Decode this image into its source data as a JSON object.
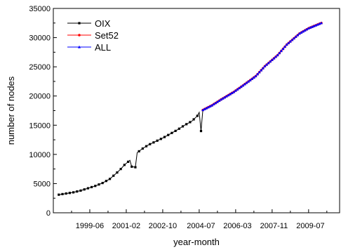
{
  "chart_data": {
    "type": "line",
    "xlabel": "year-month",
    "ylabel": "number of nodes",
    "ylim": [
      0,
      35000
    ],
    "y_ticks": [
      0,
      5000,
      10000,
      15000,
      20000,
      25000,
      30000,
      35000
    ],
    "x_ticks": [
      "1999-06",
      "2001-02",
      "2002-10",
      "2004-07",
      "2006-03",
      "2007-11",
      "2009-07"
    ],
    "xlim": [
      "1997-10",
      "2010-11"
    ],
    "grid": false,
    "legend_position": "top-left",
    "series": [
      {
        "name": "OIX",
        "color": "#000000",
        "marker": "square",
        "points": [
          [
            "1998-01",
            3100
          ],
          [
            "1998-05",
            3300
          ],
          [
            "1998-09",
            3500
          ],
          [
            "1999-01",
            3800
          ],
          [
            "1999-05",
            4200
          ],
          [
            "1999-09",
            4600
          ],
          [
            "2000-01",
            5100
          ],
          [
            "2000-05",
            5800
          ],
          [
            "2000-09",
            6900
          ],
          [
            "2000-11",
            7500
          ],
          [
            "2001-01",
            8200
          ],
          [
            "2001-04",
            9000
          ],
          [
            "2001-05",
            7900
          ],
          [
            "2001-07",
            7800
          ],
          [
            "2001-08",
            10300
          ],
          [
            "2001-11",
            11000
          ],
          [
            "2002-02",
            11600
          ],
          [
            "2002-06",
            12200
          ],
          [
            "2002-10",
            12800
          ],
          [
            "2003-02",
            13500
          ],
          [
            "2003-06",
            14200
          ],
          [
            "2003-10",
            15000
          ],
          [
            "2004-02",
            15700
          ],
          [
            "2004-05",
            16600
          ],
          [
            "2004-06",
            17200
          ],
          [
            "2004-07",
            14000
          ],
          [
            "2004-08",
            17600
          ]
        ]
      },
      {
        "name": "Set52",
        "color": "#ff0000",
        "marker": "circle",
        "points": [
          [
            "2004-08",
            17600
          ],
          [
            "2005-01",
            18400
          ],
          [
            "2005-06",
            19400
          ],
          [
            "2006-01",
            20700
          ],
          [
            "2006-06",
            21800
          ],
          [
            "2007-01",
            23400
          ],
          [
            "2007-06",
            25100
          ],
          [
            "2008-01",
            27000
          ],
          [
            "2008-06",
            28800
          ],
          [
            "2009-01",
            30700
          ],
          [
            "2009-06",
            31600
          ],
          [
            "2010-01",
            32500
          ]
        ]
      },
      {
        "name": "ALL",
        "color": "#0000ff",
        "marker": "triangle",
        "points": [
          [
            "2004-08",
            17600
          ],
          [
            "2005-01",
            18400
          ],
          [
            "2005-06",
            19400
          ],
          [
            "2006-01",
            20700
          ],
          [
            "2006-06",
            21800
          ],
          [
            "2007-01",
            23400
          ],
          [
            "2007-06",
            25100
          ],
          [
            "2008-01",
            27000
          ],
          [
            "2008-06",
            28800
          ],
          [
            "2009-01",
            30700
          ],
          [
            "2009-06",
            31600
          ],
          [
            "2010-01",
            32500
          ]
        ]
      }
    ]
  }
}
